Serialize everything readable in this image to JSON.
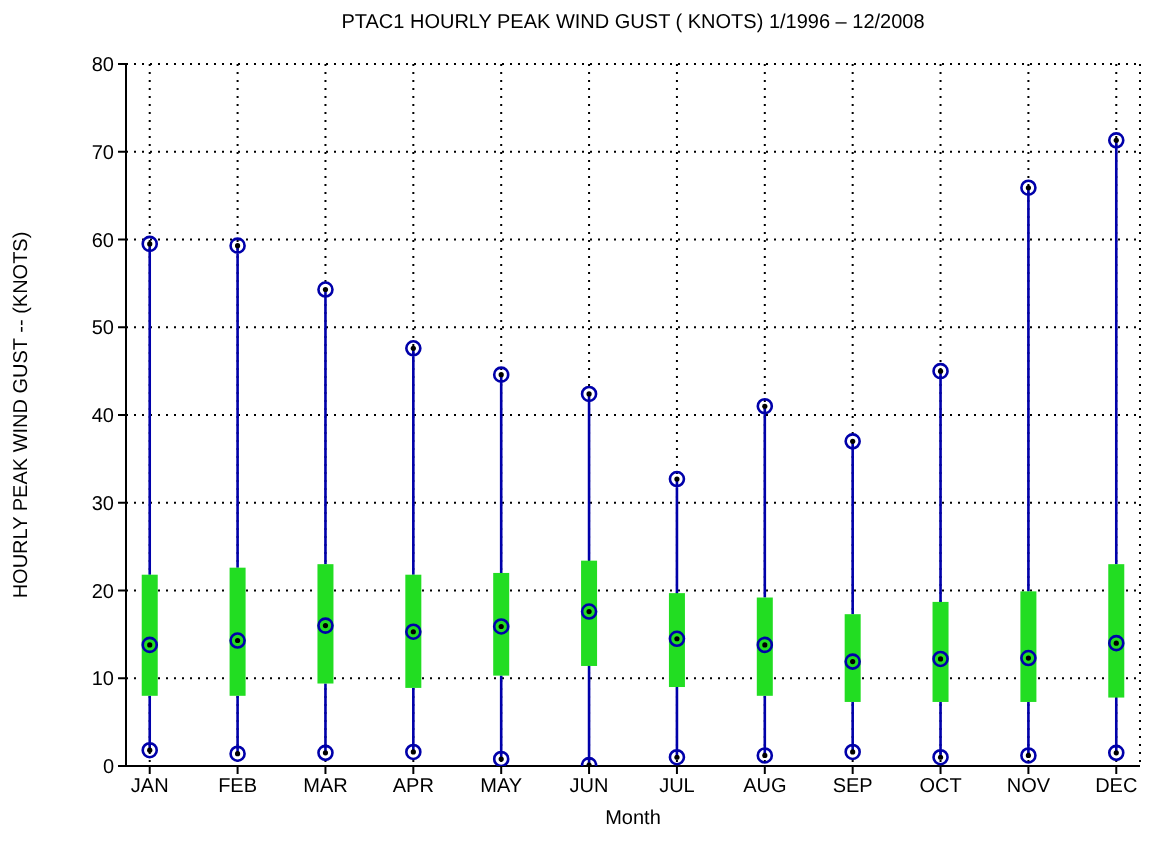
{
  "chart_data": {
    "type": "box",
    "title": "PTAC1  HOURLY PEAK WIND GUST ( KNOTS) 1/1996 – 12/2008",
    "xlabel": "Month",
    "ylabel": "HOURLY PEAK WIND GUST --  (KNOTS)",
    "categories": [
      "JAN",
      "FEB",
      "MAR",
      "APR",
      "MAY",
      "JUN",
      "JUL",
      "AUG",
      "SEP",
      "OCT",
      "NOV",
      "DEC"
    ],
    "color": "#22dd22",
    "marker": "circle",
    "grid": true,
    "ylim": [
      0,
      80
    ],
    "yticks": [
      0,
      10,
      20,
      30,
      40,
      50,
      60,
      70,
      80
    ],
    "boxes": [
      {
        "low": 1.8,
        "q1": 8,
        "median": 13.8,
        "q3": 21.8,
        "high": 59.5
      },
      {
        "low": 1.4,
        "q1": 8,
        "median": 14.3,
        "q3": 22.6,
        "high": 59.3
      },
      {
        "low": 1.5,
        "q1": 9.4,
        "median": 16,
        "q3": 23,
        "high": 54.3
      },
      {
        "low": 1.6,
        "q1": 8.9,
        "median": 15.3,
        "q3": 21.8,
        "high": 47.6
      },
      {
        "low": 0.8,
        "q1": 10.3,
        "median": 15.9,
        "q3": 22,
        "high": 44.6
      },
      {
        "low": 0.1,
        "q1": 11.4,
        "median": 17.6,
        "q3": 23.4,
        "high": 42.4
      },
      {
        "low": 1,
        "q1": 9,
        "median": 14.5,
        "q3": 19.7,
        "high": 32.7
      },
      {
        "low": 1.2,
        "q1": 8,
        "median": 13.8,
        "q3": 19.2,
        "high": 41
      },
      {
        "low": 1.6,
        "q1": 7.3,
        "median": 11.9,
        "q3": 17.3,
        "high": 37
      },
      {
        "low": 1,
        "q1": 7.3,
        "median": 12.2,
        "q3": 18.7,
        "high": 45
      },
      {
        "low": 1.2,
        "q1": 7.3,
        "median": 12.3,
        "q3": 19.9,
        "high": 65.9
      },
      {
        "low": 1.5,
        "q1": 7.8,
        "median": 14,
        "q3": 23,
        "high": 71.3
      }
    ]
  }
}
